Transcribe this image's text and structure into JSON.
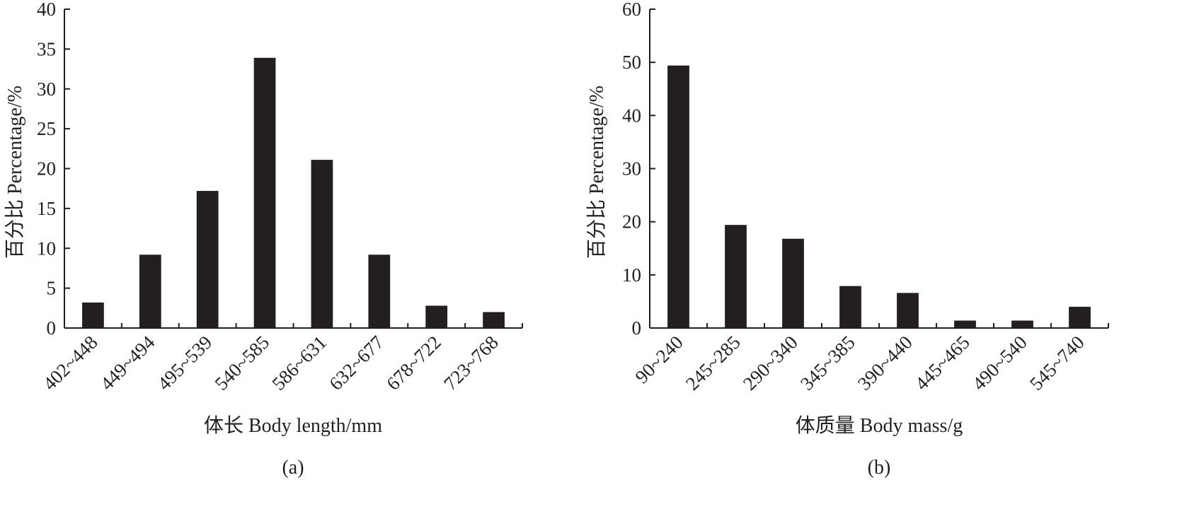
{
  "chart_data": [
    {
      "type": "bar",
      "panel_label": "(a)",
      "categories": [
        "402~448",
        "449~494",
        "495~539",
        "540~585",
        "586~631",
        "632~677",
        "678~722",
        "723~768"
      ],
      "values": [
        3.2,
        9.2,
        17.2,
        33.9,
        21.1,
        9.2,
        2.8,
        2.0
      ],
      "xlabel": "体长 Body length/mm",
      "ylabel": "百分比 Percentage/%",
      "ylim": [
        0,
        40
      ],
      "yticks": [
        "0",
        "5",
        "10",
        "15",
        "20",
        "25",
        "30",
        "35",
        "40"
      ],
      "legend": "none",
      "grid": false,
      "bar_color": "#231f20"
    },
    {
      "type": "bar",
      "panel_label": "(b)",
      "categories": [
        "90~240",
        "245~285",
        "290~340",
        "345~385",
        "390~440",
        "445~465",
        "490~540",
        "545~740"
      ],
      "values": [
        49.4,
        19.4,
        16.8,
        7.9,
        6.6,
        1.4,
        1.4,
        4.0
      ],
      "xlabel": "体质量 Body mass/g",
      "ylabel": "百分比 Percentage/%",
      "ylim": [
        0,
        60
      ],
      "yticks": [
        "0",
        "10",
        "20",
        "30",
        "40",
        "50",
        "60"
      ],
      "legend": "none",
      "grid": false,
      "bar_color": "#231f20"
    }
  ]
}
